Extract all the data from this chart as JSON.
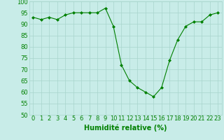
{
  "x": [
    0,
    1,
    2,
    3,
    4,
    5,
    6,
    7,
    8,
    9,
    10,
    11,
    12,
    13,
    14,
    15,
    16,
    17,
    18,
    19,
    20,
    21,
    22,
    23
  ],
  "y": [
    93,
    92,
    93,
    92,
    94,
    95,
    95,
    95,
    95,
    97,
    89,
    72,
    65,
    62,
    60,
    58,
    62,
    74,
    83,
    89,
    91,
    91,
    94,
    95
  ],
  "line_color": "#008000",
  "marker": "D",
  "marker_size": 2,
  "bg_color": "#c8ece8",
  "grid_color": "#a8d4cc",
  "xlabel": "Humidité relative (%)",
  "xlabel_color": "#008000",
  "xlabel_fontsize": 7,
  "tick_color": "#008000",
  "tick_fontsize": 6,
  "ylim": [
    50,
    100
  ],
  "xlim": [
    -0.5,
    23.5
  ],
  "yticks": [
    50,
    55,
    60,
    65,
    70,
    75,
    80,
    85,
    90,
    95,
    100
  ],
  "xticks": [
    0,
    1,
    2,
    3,
    4,
    5,
    6,
    7,
    8,
    9,
    10,
    11,
    12,
    13,
    14,
    15,
    16,
    17,
    18,
    19,
    20,
    21,
    22,
    23
  ]
}
